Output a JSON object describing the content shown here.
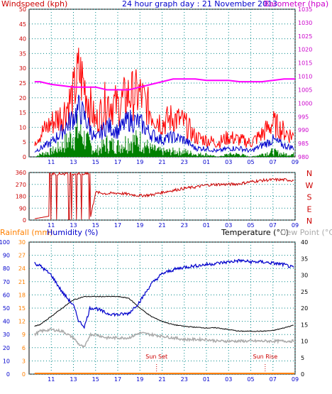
{
  "header": {
    "windspeed_label": "Windspeed (kph)",
    "title": "24 hour graph day : 21 November 2013",
    "barometer_label": "Barometer (hpa)",
    "rainfall_label": "Rainfall (mm)",
    "humidity_label": "Humidity (%)",
    "temperature_label": "Temperature (°C)",
    "dewpoint_label": "Dew Point (°C)"
  },
  "colors": {
    "wind_gust": "#ff0000",
    "wind_avg": "#0000cc",
    "wind_green": "#008000",
    "barometer": "#ff00ff",
    "wind_dir": "#cc0000",
    "humidity": "#0000cc",
    "temperature": "#000000",
    "dewpoint": "#aaaaaa",
    "rainfall": "#ff8000",
    "left_axis": "#cc0000",
    "right_axis_top": "#cc00cc",
    "bottom_left_axis": "#0000cc",
    "bottom_right_axis": "#000000",
    "grid": "#008888"
  },
  "annotations": {
    "sunset": "Sun Set",
    "sunrise": "Sun Rise"
  },
  "chart_data": [
    {
      "type": "line",
      "id": "wind-barometer",
      "x_ticks": [
        "11",
        "13",
        "15",
        "17",
        "19",
        "21",
        "23",
        "01",
        "03",
        "05",
        "07",
        "09"
      ],
      "y_left": {
        "label": "Windspeed (kph)",
        "ticks": [
          0,
          5,
          10,
          15,
          20,
          25,
          30,
          35,
          40,
          45,
          50
        ],
        "lim": [
          0,
          50
        ]
      },
      "y_right": {
        "label": "Barometer (hpa)",
        "ticks": [
          980,
          985,
          990,
          995,
          1000,
          1005,
          1010,
          1015,
          1020,
          1025,
          1030,
          1035
        ],
        "lim": [
          980,
          1035
        ]
      },
      "grid": true,
      "x_hours": [
        9.5,
        10,
        11,
        12,
        13,
        13.5,
        14,
        15,
        16,
        17,
        18,
        19,
        20,
        21,
        22,
        23,
        24,
        25,
        26,
        27,
        28,
        29,
        30,
        31,
        32,
        33
      ],
      "series": [
        {
          "name": "Windspeed (kph)",
          "kind": "gust",
          "values": [
            6,
            8,
            12,
            15,
            22,
            30,
            25,
            12,
            20,
            18,
            22,
            22,
            16,
            12,
            14,
            12,
            7,
            6,
            5,
            7,
            6,
            5,
            8,
            12,
            9,
            7
          ]
        },
        {
          "name": "",
          "kind": "average",
          "values": [
            2,
            3,
            5,
            9,
            14,
            17,
            14,
            6,
            11,
            9,
            13,
            12,
            8,
            6,
            7,
            6,
            3,
            3,
            2,
            3,
            3,
            2,
            4,
            6,
            4,
            3
          ]
        },
        {
          "name": "",
          "kind": "lull",
          "values": [
            0,
            1,
            2,
            4,
            8,
            10,
            7,
            2,
            5,
            4,
            6,
            6,
            3,
            2,
            2,
            2,
            1,
            1,
            0,
            1,
            1,
            0,
            1,
            2,
            1,
            1
          ]
        },
        {
          "name": "Barometer (hpa)",
          "kind": "barometer",
          "values": [
            1008,
            1008,
            1007,
            1006.5,
            1006,
            1006,
            1006,
            1006,
            1005,
            1005,
            1005,
            1006,
            1007,
            1008,
            1009,
            1009,
            1009,
            1008.5,
            1008.5,
            1008.5,
            1008,
            1008,
            1008,
            1008.5,
            1009,
            1009
          ]
        }
      ]
    },
    {
      "type": "line",
      "id": "wind-direction",
      "x_ticks": [
        "11",
        "13",
        "15",
        "17",
        "19",
        "21",
        "23",
        "01",
        "03",
        "05",
        "07",
        "09"
      ],
      "y_left": {
        "ticks": [
          0,
          90,
          180,
          270,
          360
        ],
        "lim": [
          0,
          360
        ]
      },
      "y_right_labels": [
        "N",
        "W",
        "S",
        "E",
        "N"
      ],
      "grid": true,
      "x_hours": [
        9.5,
        10.5,
        11,
        11.5,
        12,
        12.5,
        13,
        13.5,
        14,
        14.5,
        15,
        16,
        17,
        18,
        19,
        20,
        21,
        22,
        23,
        24,
        25,
        26,
        27,
        28,
        29,
        30,
        31,
        32,
        33
      ],
      "series": [
        {
          "name": "",
          "values": [
            10,
            30,
            355,
            20,
            350,
            15,
            355,
            20,
            355,
            5,
            210,
            200,
            205,
            195,
            185,
            190,
            210,
            225,
            240,
            250,
            265,
            270,
            270,
            275,
            290,
            300,
            305,
            305,
            300
          ]
        }
      ]
    },
    {
      "type": "line",
      "id": "temp-humidity",
      "x_ticks": [
        "11",
        "13",
        "15",
        "17",
        "19",
        "21",
        "23",
        "01",
        "03",
        "05",
        "07",
        "09"
      ],
      "y_left_outer": {
        "label": "Rainfall (mm)",
        "ticks": [
          0,
          3,
          6,
          9,
          12,
          15,
          18,
          21,
          24,
          27,
          30
        ],
        "lim": [
          0,
          30
        ]
      },
      "y_left_inner": {
        "label": "Humidity (%)",
        "ticks": [
          0,
          10,
          20,
          30,
          40,
          50,
          60,
          70,
          80,
          90,
          100
        ],
        "lim": [
          0,
          100
        ]
      },
      "y_right": {
        "label": "Temperature (°C)",
        "ticks": [
          0,
          5,
          10,
          15,
          20,
          25,
          30,
          35,
          40
        ],
        "lim": [
          0,
          40
        ]
      },
      "grid": true,
      "x_hours": [
        9.5,
        10,
        11,
        12,
        13,
        13.5,
        14,
        14.5,
        15,
        16,
        17,
        18,
        19,
        20,
        21,
        22,
        23,
        24,
        25,
        26,
        27,
        28,
        29,
        30,
        31,
        32,
        33
      ],
      "series": [
        {
          "name": "Humidity (%)",
          "kind": "humidity",
          "values": [
            84,
            82,
            75,
            62,
            52,
            40,
            36,
            50,
            50,
            46,
            45,
            46,
            55,
            68,
            76,
            79,
            81,
            82,
            83,
            84,
            85,
            86,
            85,
            85,
            84,
            83,
            80
          ]
        },
        {
          "name": "Temperature (°C)",
          "kind": "temperature",
          "values": [
            14.5,
            15,
            17.5,
            20,
            22.5,
            23,
            23.5,
            23.5,
            23.5,
            23.5,
            23.5,
            23,
            20,
            17.5,
            16,
            15,
            14.5,
            14.2,
            14,
            14,
            13.5,
            13,
            13,
            13,
            13.2,
            14,
            15
          ]
        },
        {
          "name": "Dew Point (°C)",
          "kind": "dewpoint",
          "values": [
            12,
            13,
            13.5,
            13,
            11,
            9,
            8,
            12,
            12,
            11,
            11,
            11,
            12.5,
            12,
            11.5,
            11,
            10.5,
            10.5,
            10.5,
            10,
            10,
            10,
            10,
            10,
            10,
            10,
            10
          ]
        },
        {
          "name": "Rainfall (mm)",
          "kind": "rainfall",
          "values": [
            0,
            0,
            0,
            0,
            0,
            0,
            0,
            0,
            0,
            0,
            0,
            0,
            0,
            0,
            0,
            0,
            0,
            0,
            0,
            0,
            0,
            0,
            0,
            0,
            0,
            0,
            0
          ]
        }
      ],
      "events": [
        {
          "label": "Sun Set",
          "hour": 20.5
        },
        {
          "label": "Sun Rise",
          "hour": 30.3
        }
      ]
    }
  ]
}
